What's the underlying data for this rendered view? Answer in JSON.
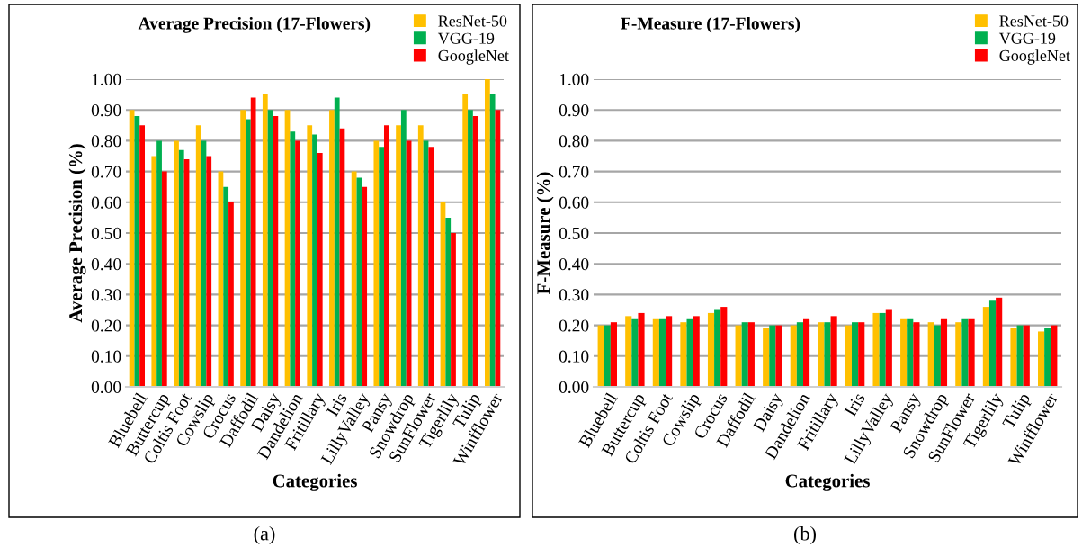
{
  "chart_data": [
    {
      "type": "bar",
      "title": "Average Precision (17-Flowers)",
      "xlabel": "Categories",
      "ylabel": "Average Precision (%)",
      "categories": [
        "Bluebell",
        "Buttercup",
        "Coltis Foot",
        "Cowslip",
        "Crocus",
        "Daffodil",
        "Daisy",
        "Dandelion",
        "Fritillary",
        "Iris",
        "LillyValley",
        "Pansy",
        "Snowdrop",
        "SunFlower",
        "Tigerlily",
        "Tulip",
        "Winfflower"
      ],
      "series": [
        {
          "name": "ResNet-50",
          "color": "#ffc000",
          "values": [
            0.9,
            0.75,
            0.8,
            0.85,
            0.7,
            0.9,
            0.95,
            0.9,
            0.85,
            0.9,
            0.7,
            0.8,
            0.85,
            0.85,
            0.6,
            0.95,
            1.0
          ]
        },
        {
          "name": "VGG-19",
          "color": "#00b050",
          "values": [
            0.88,
            0.8,
            0.77,
            0.8,
            0.65,
            0.87,
            0.9,
            0.83,
            0.82,
            0.94,
            0.68,
            0.78,
            0.9,
            0.8,
            0.55,
            0.9,
            0.95
          ]
        },
        {
          "name": "GoogleNet",
          "color": "#ff0000",
          "values": [
            0.85,
            0.7,
            0.74,
            0.75,
            0.6,
            0.94,
            0.88,
            0.8,
            0.76,
            0.84,
            0.65,
            0.85,
            0.8,
            0.78,
            0.5,
            0.88,
            0.9
          ]
        }
      ],
      "ylim": [
        0,
        1
      ],
      "yticks": [
        {
          "value": 0,
          "label": "0.00"
        },
        {
          "value": 0.1,
          "label": "0.10"
        },
        {
          "value": 0.2,
          "label": "0.20"
        },
        {
          "value": 0.3,
          "label": "0.30"
        },
        {
          "value": 0.4,
          "label": "0.40"
        },
        {
          "value": 0.5,
          "label": "0.50"
        },
        {
          "value": 0.6,
          "label": "0.60"
        },
        {
          "value": 0.7,
          "label": "0.70"
        },
        {
          "value": 0.8,
          "label": "0.80"
        },
        {
          "value": 0.9,
          "label": "0.90"
        },
        {
          "value": 1.0,
          "label": "1.00"
        }
      ],
      "grid": "y",
      "legend": "top right",
      "annotations": [
        "(a)"
      ]
    },
    {
      "type": "bar",
      "title": "F-Measure (17-Flowers)",
      "xlabel": "Categories",
      "ylabel": "F-Measure (%)",
      "categories": [
        "Bluebell",
        "Buttercup",
        "Coltis Foot",
        "Cowslip",
        "Crocus",
        "Daffodil",
        "Daisy",
        "Dandelion",
        "Fritillary",
        "Iris",
        "LillyValley",
        "Pansy",
        "Snowdrop",
        "SunFlower",
        "Tigerlily",
        "Tulip",
        "Winfflower"
      ],
      "series": [
        {
          "name": "ResNet-50",
          "color": "#ffc000",
          "values": [
            0.2,
            0.23,
            0.22,
            0.21,
            0.24,
            0.2,
            0.19,
            0.2,
            0.21,
            0.2,
            0.24,
            0.22,
            0.21,
            0.21,
            0.26,
            0.19,
            0.18
          ]
        },
        {
          "name": "VGG-19",
          "color": "#00b050",
          "values": [
            0.2,
            0.22,
            0.22,
            0.22,
            0.25,
            0.21,
            0.2,
            0.21,
            0.21,
            0.21,
            0.24,
            0.22,
            0.2,
            0.22,
            0.28,
            0.2,
            0.19
          ]
        },
        {
          "name": "GoogleNet",
          "color": "#ff0000",
          "values": [
            0.21,
            0.24,
            0.23,
            0.23,
            0.26,
            0.21,
            0.2,
            0.22,
            0.23,
            0.21,
            0.25,
            0.21,
            0.22,
            0.22,
            0.29,
            0.2,
            0.2
          ]
        }
      ],
      "ylim": [
        0,
        1
      ],
      "yticks": [
        {
          "value": 0,
          "label": "0.00"
        },
        {
          "value": 0.1,
          "label": "0.10"
        },
        {
          "value": 0.2,
          "label": "0.20"
        },
        {
          "value": 0.3,
          "label": "0.30"
        },
        {
          "value": 0.4,
          "label": "0.40"
        },
        {
          "value": 0.5,
          "label": "0.50"
        },
        {
          "value": 0.6,
          "label": "0.60"
        },
        {
          "value": 0.7,
          "label": "0.70"
        },
        {
          "value": 0.8,
          "label": "0.80"
        },
        {
          "value": 0.9,
          "label": "0.90"
        },
        {
          "value": 1.0,
          "label": "1.00"
        }
      ],
      "grid": "y",
      "legend": "top right",
      "annotations": [
        "(b)"
      ]
    }
  ]
}
